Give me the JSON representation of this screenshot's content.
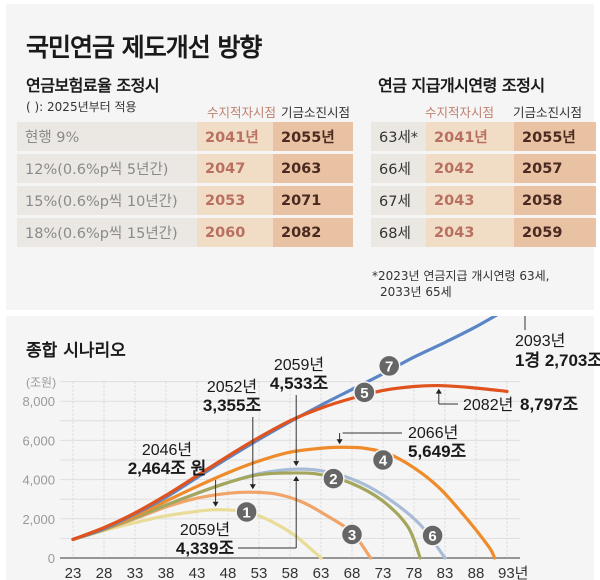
{
  "title": "국민연금 제도개선 방향",
  "table_rate": {
    "subtitle": "연금보험료율 조정시",
    "note": "( ): 2025년부터 적용",
    "headers": [
      "수지적자시점",
      "기금소진시점"
    ],
    "rows": [
      {
        "label": "현행 9%",
        "deficit": "2041년",
        "depletion": "2055년"
      },
      {
        "label": "12%(0.6%p씩 5년간)",
        "deficit": "2047",
        "depletion": "2063"
      },
      {
        "label": "15%(0.6%p씩 10년간)",
        "deficit": "2053",
        "depletion": "2071"
      },
      {
        "label": "18%(0.6%p씩 15년간)",
        "deficit": "2060",
        "depletion": "2082"
      }
    ]
  },
  "table_age": {
    "subtitle": "연금 지급개시연령 조정시",
    "headers": [
      "수지적자시점",
      "기금소진시점"
    ],
    "rows": [
      {
        "label": "63세*",
        "deficit": "2041년",
        "depletion": "2055년"
      },
      {
        "label": "66세",
        "deficit": "2042",
        "depletion": "2057"
      },
      {
        "label": "67세",
        "deficit": "2043",
        "depletion": "2058"
      },
      {
        "label": "68세",
        "deficit": "2043",
        "depletion": "2059"
      }
    ],
    "footnote_line1": "*2023년 연금지급 개시연령 63세,",
    "footnote_line2": "2033년 65세"
  },
  "chart_data": {
    "type": "line",
    "title": "종합 시나리오",
    "ylabel": "(조원)",
    "xlabel": "년",
    "xlim": [
      2023,
      2093
    ],
    "ylim": [
      0,
      9000
    ],
    "x_ticks": [
      "23",
      "28",
      "33",
      "38",
      "43",
      "48",
      "53",
      "58",
      "63",
      "68",
      "73",
      "78",
      "83",
      "88",
      "93년"
    ],
    "y_ticks": [
      "0",
      "2,000",
      "4,000",
      "6,000",
      "8,000"
    ],
    "grid": true,
    "series": [
      {
        "name": "1",
        "color": "#e8dc98",
        "points": [
          [
            2023,
            950
          ],
          [
            2028,
            1400
          ],
          [
            2033,
            1800
          ],
          [
            2038,
            2150
          ],
          [
            2043,
            2380
          ],
          [
            2046,
            2464
          ],
          [
            2050,
            2400
          ],
          [
            2053,
            2150
          ],
          [
            2056,
            1700
          ],
          [
            2059,
            1100
          ],
          [
            2063,
            0
          ]
        ]
      },
      {
        "name": "2",
        "color": "#a3a65c",
        "points": [
          [
            2023,
            950
          ],
          [
            2028,
            1450
          ],
          [
            2033,
            2050
          ],
          [
            2038,
            2700
          ],
          [
            2043,
            3300
          ],
          [
            2048,
            3850
          ],
          [
            2053,
            4250
          ],
          [
            2059,
            4339
          ],
          [
            2063,
            4250
          ],
          [
            2068,
            3800
          ],
          [
            2073,
            2900
          ],
          [
            2077,
            1600
          ],
          [
            2079,
            0
          ]
        ]
      },
      {
        "name": "3",
        "color": "#f0a46a",
        "points": [
          [
            2023,
            950
          ],
          [
            2028,
            1450
          ],
          [
            2033,
            2000
          ],
          [
            2038,
            2600
          ],
          [
            2043,
            3050
          ],
          [
            2048,
            3300
          ],
          [
            2052,
            3355
          ],
          [
            2056,
            3250
          ],
          [
            2060,
            2850
          ],
          [
            2064,
            2150
          ],
          [
            2068,
            1300
          ],
          [
            2071,
            0
          ]
        ]
      },
      {
        "name": "4",
        "color": "#ef8b2b",
        "points": [
          [
            2023,
            950
          ],
          [
            2028,
            1480
          ],
          [
            2033,
            2150
          ],
          [
            2038,
            2900
          ],
          [
            2043,
            3650
          ],
          [
            2048,
            4350
          ],
          [
            2053,
            4950
          ],
          [
            2058,
            5400
          ],
          [
            2063,
            5600
          ],
          [
            2066,
            5649
          ],
          [
            2070,
            5600
          ],
          [
            2074,
            5300
          ],
          [
            2078,
            4600
          ],
          [
            2082,
            3600
          ],
          [
            2086,
            2200
          ],
          [
            2090,
            600
          ],
          [
            2091,
            0
          ]
        ]
      },
      {
        "name": "5",
        "color": "#e0531e",
        "points": [
          [
            2023,
            950
          ],
          [
            2028,
            1550
          ],
          [
            2033,
            2300
          ],
          [
            2038,
            3200
          ],
          [
            2043,
            4200
          ],
          [
            2048,
            5200
          ],
          [
            2053,
            6150
          ],
          [
            2058,
            7000
          ],
          [
            2063,
            7650
          ],
          [
            2068,
            8150
          ],
          [
            2073,
            8550
          ],
          [
            2078,
            8750
          ],
          [
            2082,
            8797
          ],
          [
            2087,
            8700
          ],
          [
            2093,
            8500
          ]
        ]
      },
      {
        "name": "6",
        "color": "#a9bcd6",
        "points": [
          [
            2023,
            950
          ],
          [
            2028,
            1450
          ],
          [
            2033,
            2050
          ],
          [
            2038,
            2700
          ],
          [
            2043,
            3300
          ],
          [
            2048,
            3850
          ],
          [
            2053,
            4300
          ],
          [
            2059,
            4533
          ],
          [
            2064,
            4400
          ],
          [
            2069,
            3900
          ],
          [
            2074,
            3000
          ],
          [
            2079,
            1700
          ],
          [
            2083,
            0
          ]
        ]
      },
      {
        "name": "7",
        "color": "#5b86c6",
        "points": [
          [
            2023,
            950
          ],
          [
            2028,
            1500
          ],
          [
            2033,
            2250
          ],
          [
            2038,
            3100
          ],
          [
            2043,
            4100
          ],
          [
            2048,
            5100
          ],
          [
            2053,
            6050
          ],
          [
            2058,
            6950
          ],
          [
            2063,
            7800
          ],
          [
            2068,
            8600
          ],
          [
            2073,
            9400
          ],
          [
            2078,
            10250
          ],
          [
            2083,
            11000
          ],
          [
            2088,
            11800
          ],
          [
            2093,
            12703
          ]
        ]
      }
    ],
    "annotations": [
      {
        "id": "a2046",
        "line1": "2046년",
        "line2": "2,464조 원",
        "x": 2046,
        "y": 2464
      },
      {
        "id": "a2052",
        "line1": "2052년",
        "line2": "3,355조",
        "x": 2052,
        "y": 3355
      },
      {
        "id": "a2059top",
        "line1": "2059년",
        "line2": "4,533조",
        "x": 2059,
        "y": 4533
      },
      {
        "id": "a2059bot",
        "line1": "2059년",
        "line2": "4,339조",
        "x": 2059,
        "y": 4339
      },
      {
        "id": "a2066",
        "line1": "2066년",
        "line2": "5,649조",
        "x": 2066,
        "y": 5649
      },
      {
        "id": "a2082",
        "line1": "2082년",
        "line2": "8,797조",
        "x": 2082,
        "y": 8797
      },
      {
        "id": "a2093",
        "line1": "2093년",
        "line2": "1경 2,703조",
        "x": 2093,
        "y": 12703
      }
    ],
    "markers": [
      {
        "label": "1",
        "x": 2051,
        "y": 2350
      },
      {
        "label": "2",
        "x": 2065,
        "y": 4050
      },
      {
        "label": "3",
        "x": 2068,
        "y": 1200
      },
      {
        "label": "4",
        "x": 2073,
        "y": 5000
      },
      {
        "label": "5",
        "x": 2070,
        "y": 8450
      },
      {
        "label": "6",
        "x": 2081,
        "y": 1150
      },
      {
        "label": "7",
        "x": 2074,
        "y": 9800
      }
    ]
  }
}
